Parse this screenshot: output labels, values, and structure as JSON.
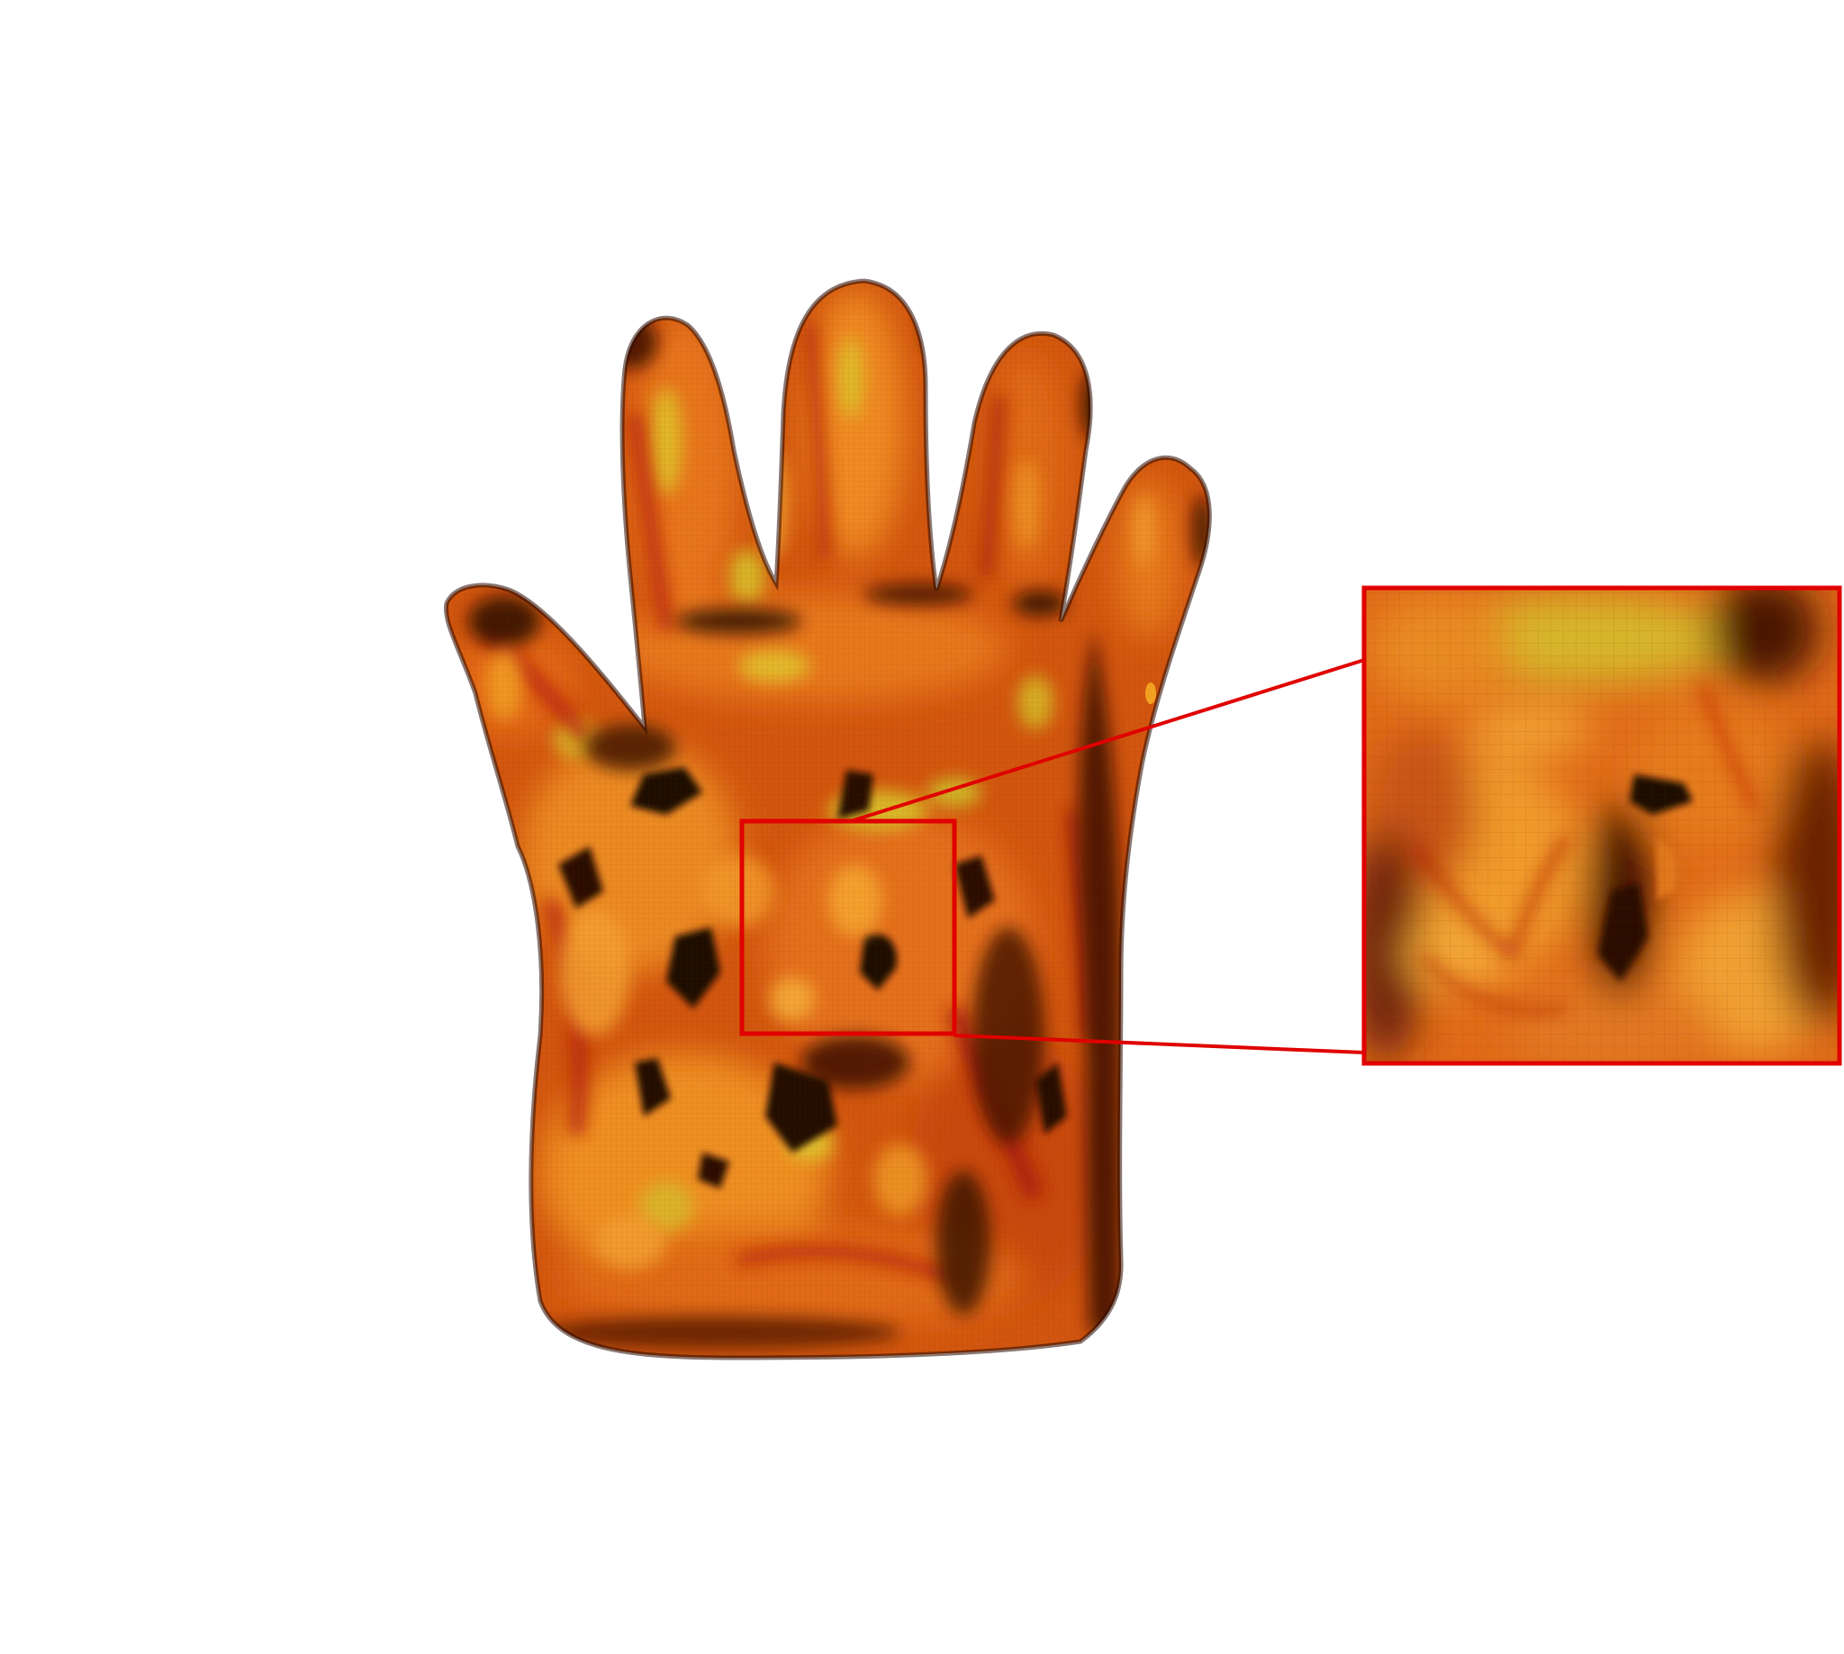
{
  "figure": {
    "subject": "glove-render",
    "background_color": "#ffffff",
    "highlight_color": "#e00000",
    "palette": {
      "base": "#d2560f",
      "mid": "#e8761a",
      "bright": "#f2a328",
      "yellow": "#d9c22a",
      "red": "#b8220c",
      "shadow": "#1e0a00"
    }
  }
}
